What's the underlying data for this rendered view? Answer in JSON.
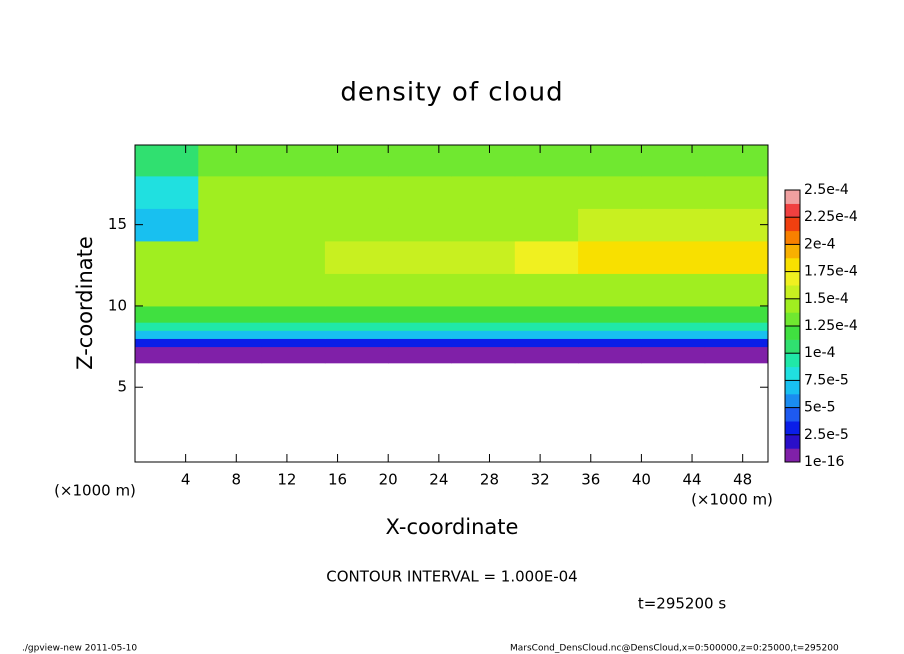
{
  "chart_data": {
    "type": "heatmap",
    "title": "density of cloud",
    "x_label": "X-coordinate",
    "y_label": "Z-coordinate",
    "x_unit": "(×1000 m)",
    "y_unit": "(×1000 m)",
    "contour_note": "CONTOUR INTERVAL = 1.000E-04",
    "time_note": "t=295200 s",
    "footer_left": "./gpview-new  2011-05-10",
    "footer_right": "MarsCond_DensCloud.nc@DensCloud,x=0:500000,z=0:25000,t=295200",
    "xlim": [
      0,
      50
    ],
    "ylim": [
      0.4,
      19.9
    ],
    "xticks": [
      4,
      8,
      12,
      16,
      20,
      24,
      28,
      32,
      36,
      40,
      44,
      48
    ],
    "yticks": [
      5,
      10,
      15
    ],
    "x_edges": [
      0,
      5,
      10,
      15,
      20,
      25,
      30,
      35,
      40,
      45,
      50
    ],
    "y_edges": [
      0.4,
      6.5,
      7,
      7.5,
      8,
      8.5,
      9,
      10,
      12,
      14,
      16,
      18,
      19.9
    ],
    "values": [
      [
        null,
        null,
        null,
        null,
        null,
        null,
        null,
        null,
        null,
        null
      ],
      [
        1e-16,
        1e-16,
        1e-16,
        1e-16,
        1e-16,
        1e-16,
        1e-16,
        1e-16,
        1e-16,
        1e-16
      ],
      [
        1e-16,
        1e-16,
        1e-05,
        1e-05,
        1e-05,
        1e-05,
        1e-05,
        1e-05,
        1e-05,
        1e-16
      ],
      [
        3e-05,
        3e-05,
        3e-05,
        3e-05,
        3e-05,
        3e-05,
        3e-05,
        3e-05,
        3e-05,
        3e-05
      ],
      [
        7e-05,
        7e-05,
        7e-05,
        7e-05,
        7e-05,
        7e-05,
        7e-05,
        7e-05,
        7e-05,
        7e-05
      ],
      [
        9e-05,
        9e-05,
        9e-05,
        9e-05,
        9e-05,
        9e-05,
        9e-05,
        9e-05,
        9e-05,
        9e-05
      ],
      [
        0.00012,
        0.00012,
        0.00012,
        0.00012,
        0.00012,
        0.00012,
        0.00012,
        0.00012,
        0.00012,
        0.00012
      ],
      [
        0.00014,
        0.00014,
        0.00014,
        0.00014,
        0.00014,
        0.00014,
        0.00014,
        0.00015,
        0.00015,
        0.00015
      ],
      [
        0.00015,
        0.00015,
        0.00015,
        0.00016,
        0.00016,
        0.00016,
        0.00017,
        0.00018,
        0.00018,
        0.00018
      ],
      [
        7e-05,
        0.00015,
        0.00015,
        0.00015,
        0.00015,
        0.00015,
        0.00015,
        0.00016,
        0.00016,
        0.00016
      ],
      [
        8e-05,
        0.00014,
        0.00014,
        0.00014,
        0.00014,
        0.00014,
        0.00014,
        0.00014,
        0.00014,
        0.00014
      ],
      [
        0.00011,
        0.00013,
        0.00013,
        0.00013,
        0.00013,
        0.00013,
        0.00013,
        0.00013,
        0.00013,
        0.00013
      ]
    ],
    "levels": [
      {
        "value": 1e-16,
        "label": "1e-16"
      },
      {
        "value": 2.5e-05,
        "label": "2.5e-5"
      },
      {
        "value": 5e-05,
        "label": "5e-5"
      },
      {
        "value": 7.5e-05,
        "label": "7.5e-5"
      },
      {
        "value": 0.0001,
        "label": "1e-4"
      },
      {
        "value": 0.000125,
        "label": "1.25e-4"
      },
      {
        "value": 0.00015,
        "label": "1.5e-4"
      },
      {
        "value": 0.000175,
        "label": "1.75e-4"
      },
      {
        "value": 0.0002,
        "label": "2e-4"
      },
      {
        "value": 0.000225,
        "label": "2.25e-4"
      },
      {
        "value": 0.00025,
        "label": "2.5e-4"
      }
    ],
    "colors": [
      "#8020a8",
      "#2a0fc8",
      "#0a1ee8",
      "#1e5af0",
      "#1a8cf0",
      "#18c0f0",
      "#20e0e0",
      "#20e8a8",
      "#30e070",
      "#40e040",
      "#70e830",
      "#a0ee20",
      "#c8f020",
      "#f0f020",
      "#f8e000",
      "#f8b000",
      "#f88000",
      "#f04010",
      "#f04040",
      "#f0a0a0"
    ]
  }
}
